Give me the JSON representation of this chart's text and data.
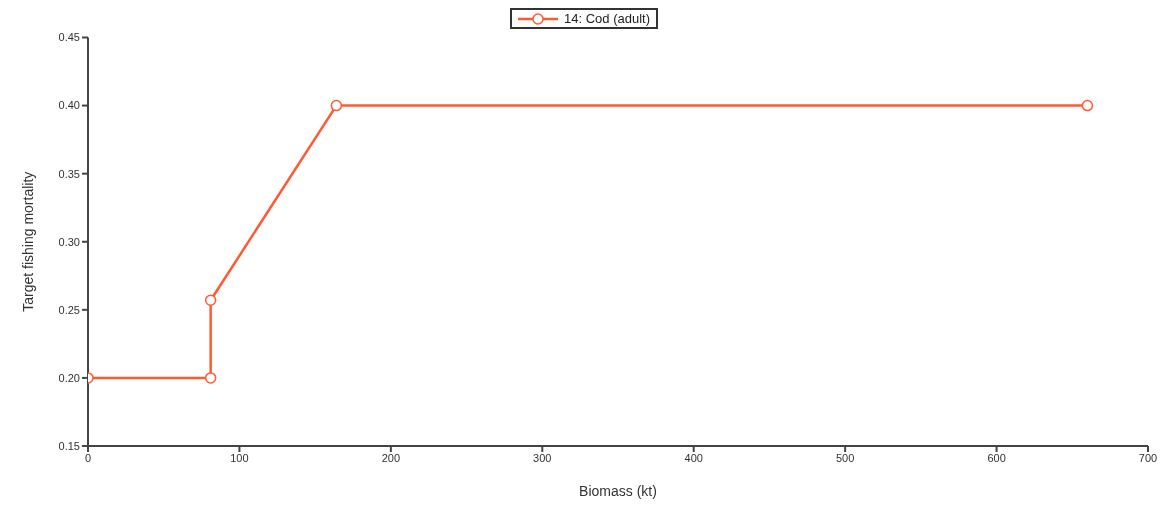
{
  "chart_data": {
    "type": "line",
    "xlabel": "Biomass (kt)",
    "ylabel": "Target fishing mortality",
    "x": [
      0,
      81,
      81,
      164,
      660
    ],
    "series": [
      {
        "name": "14: Cod (adult)",
        "color": "#ff5b33",
        "values": [
          0.2,
          0.2,
          0.257,
          0.4,
          0.4
        ]
      }
    ],
    "xlim": [
      0,
      700
    ],
    "xticks": [
      0,
      100,
      200,
      300,
      400,
      500,
      600,
      700
    ],
    "ylim": [
      0.15,
      0.45
    ],
    "yticks": [
      {
        "value": 0.15,
        "label": "0.15"
      },
      {
        "value": 0.2,
        "label": "0.20"
      },
      {
        "value": 0.25,
        "label": "0.25"
      },
      {
        "value": 0.3,
        "label": "0.30"
      },
      {
        "value": 0.35,
        "label": "0.35"
      },
      {
        "value": 0.4,
        "label": "0.40"
      },
      {
        "value": 0.45,
        "label": "0.45"
      }
    ],
    "grid": false,
    "legend": "top",
    "marker": "circle",
    "line_style": "solid"
  }
}
